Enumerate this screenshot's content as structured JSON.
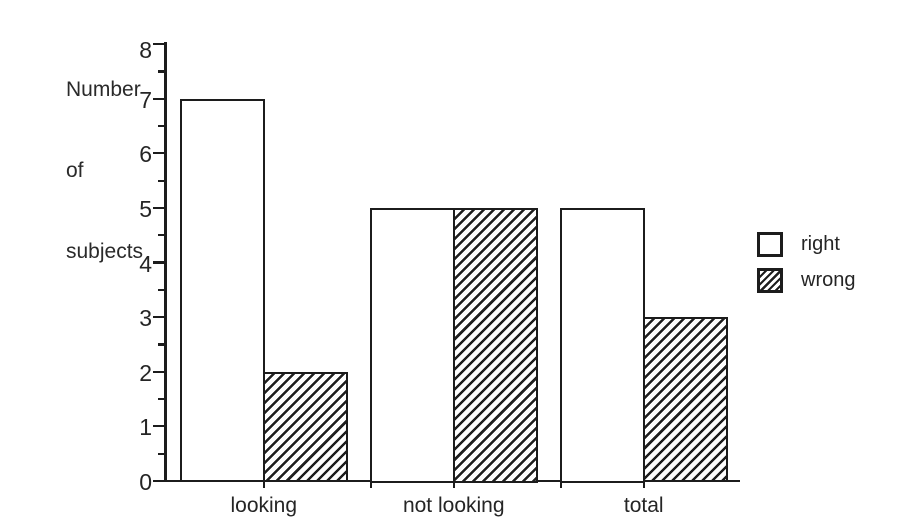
{
  "figure": {
    "background": "#ffffff",
    "ink_color": "#1c1c1c",
    "text_color": "#262626"
  },
  "y_axis": {
    "label_lines": [
      "Number",
      "of",
      "subjects"
    ],
    "tick_values": [
      0,
      1,
      2,
      3,
      4,
      5,
      6,
      7,
      8
    ]
  },
  "legend": {
    "items": [
      {
        "label": "right",
        "fill": "plain",
        "swatch": "white-square"
      },
      {
        "label": "wrong",
        "fill": "hatched",
        "swatch": "diagonal-hatch-square"
      }
    ]
  },
  "chart_data": {
    "type": "bar",
    "categories": [
      "looking",
      "not looking",
      "total"
    ],
    "series": [
      {
        "name": "right",
        "fill": "plain",
        "values": [
          7,
          5,
          5
        ]
      },
      {
        "name": "wrong",
        "fill": "hatched",
        "values": [
          2,
          5,
          3
        ]
      }
    ],
    "title": "",
    "xlabel": "",
    "ylabel": "Number of subjects",
    "ylim": [
      0,
      8
    ],
    "y_major_step": 1,
    "y_minor_step": 0.5,
    "grid": false,
    "legend_position": "right",
    "bar_style_note": "white outlined bars for 'right', 45-degree diagonal hatched bars for 'wrong'"
  }
}
